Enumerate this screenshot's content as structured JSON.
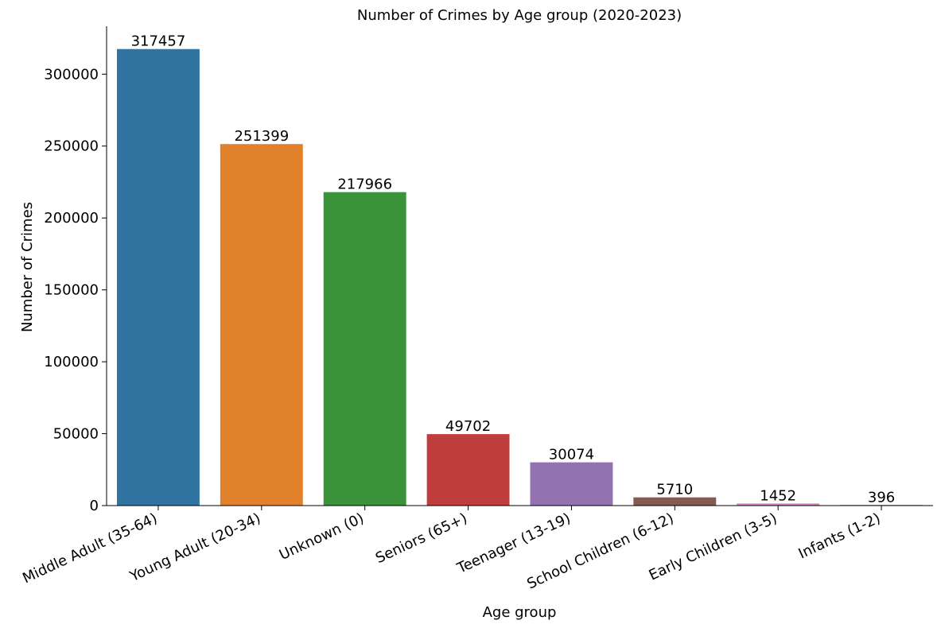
{
  "chart_data": {
    "type": "bar",
    "title": "Number of Crimes by Age group (2020-2023)",
    "xlabel": "Age group",
    "ylabel": "Number of Crimes",
    "categories": [
      "Middle Adult (35-64)",
      "Young Adult (20-34)",
      "Unknown (0)",
      "Seniors (65+)",
      "Teenager (13-19)",
      "School Children (6-12)",
      "Early Children (3-5)",
      "Infants (1-2)"
    ],
    "values": [
      317457,
      251399,
      217966,
      49702,
      30074,
      5710,
      1452,
      396
    ],
    "colors": [
      "#3274a1",
      "#e1812c",
      "#3a923a",
      "#c03d3e",
      "#9372b2",
      "#845b53",
      "#d684bd",
      "#7f7f7f"
    ],
    "yticks": [
      0,
      50000,
      100000,
      150000,
      200000,
      250000,
      300000
    ],
    "ylim": [
      0,
      333330
    ],
    "grid": false,
    "legend": "none"
  }
}
